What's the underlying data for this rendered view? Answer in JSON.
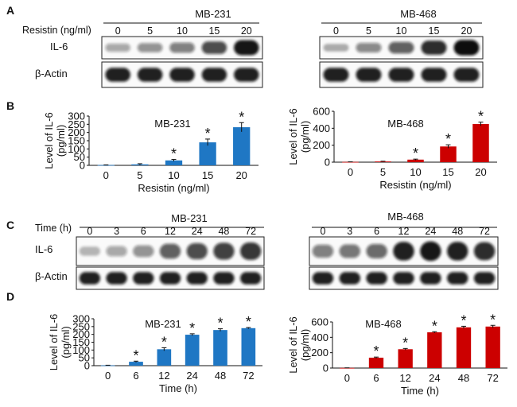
{
  "panels": {
    "A": {
      "letter": "A",
      "cell_line_left": "MB-231",
      "cell_line_right": "MB-468",
      "condition_label": "Resistin (ng/ml)",
      "lanes": [
        "0",
        "5",
        "10",
        "15",
        "20"
      ],
      "band_top": "IL-6",
      "band_bottom": "β-Actin"
    },
    "C": {
      "letter": "C",
      "cell_line_left": "MB-231",
      "cell_line_right": "MB-468",
      "condition_label": "Time  (h)",
      "lanes": [
        "0",
        "3",
        "6",
        "12",
        "24",
        "48",
        "72"
      ],
      "band_top": "IL-6",
      "band_bottom": "β-Actin"
    },
    "B": {
      "letter": "B"
    },
    "D": {
      "letter": "D"
    }
  },
  "blots": {
    "A_left_il6": [
      0.25,
      0.35,
      0.45,
      0.7,
      0.95
    ],
    "A_right_il6": [
      0.2,
      0.4,
      0.6,
      0.85,
      1.0
    ],
    "C_left_il6": [
      0.15,
      0.25,
      0.35,
      0.6,
      0.7,
      0.75,
      0.8
    ],
    "C_right_il6": [
      0.45,
      0.5,
      0.55,
      0.9,
      0.95,
      0.9,
      0.85
    ]
  },
  "colors": {
    "blue": "#1f77c4",
    "red": "#cc0000"
  },
  "chart_data": [
    {
      "type": "bar",
      "panel": "B",
      "inner_title": "MB-231",
      "categories": [
        "0",
        "5",
        "10",
        "15",
        "20"
      ],
      "values": [
        2,
        6,
        30,
        140,
        232
      ],
      "errors": [
        1,
        4,
        6,
        20,
        28
      ],
      "significant": [
        false,
        false,
        true,
        true,
        true
      ],
      "xlabel": "Resistin (ng/ml)",
      "ylabel": "Level of IL-6 (pg/ml)",
      "ylim": [
        0,
        300
      ],
      "yticks": [
        0,
        50,
        100,
        150,
        200,
        250,
        300
      ],
      "color": "#1f77c4"
    },
    {
      "type": "bar",
      "panel": "B",
      "inner_title": "MB-468",
      "categories": [
        "0",
        "5",
        "10",
        "15",
        "20"
      ],
      "values": [
        3,
        8,
        30,
        185,
        450
      ],
      "errors": [
        1,
        3,
        6,
        20,
        22
      ],
      "significant": [
        false,
        false,
        true,
        true,
        true
      ],
      "xlabel": "Resistin (ng/ml)",
      "ylabel": "Level of IL-6 (pg/ml)",
      "ylim": [
        0,
        600
      ],
      "yticks": [
        0,
        200,
        400,
        600
      ],
      "color": "#cc0000"
    },
    {
      "type": "bar",
      "panel": "D",
      "inner_title": "MB-231",
      "categories": [
        "0",
        "6",
        "12",
        "24",
        "48",
        "72"
      ],
      "values": [
        2,
        25,
        105,
        198,
        228,
        240
      ],
      "errors": [
        1,
        4,
        10,
        6,
        8,
        4
      ],
      "significant": [
        false,
        true,
        true,
        true,
        true,
        true
      ],
      "xlabel": "Time (h)",
      "ylabel": "Level of IL-6 (pg/ml)",
      "ylim": [
        0,
        300
      ],
      "yticks": [
        0,
        50,
        100,
        150,
        200,
        250,
        300
      ],
      "color": "#1f77c4"
    },
    {
      "type": "bar",
      "panel": "D",
      "inner_title": "MB-468",
      "categories": [
        "0",
        "6",
        "12",
        "24",
        "48",
        "72"
      ],
      "values": [
        2,
        135,
        245,
        465,
        530,
        540
      ],
      "errors": [
        1,
        8,
        10,
        8,
        14,
        16
      ],
      "significant": [
        false,
        true,
        true,
        true,
        true,
        true
      ],
      "xlabel": "Time (h)",
      "ylabel": "Level of IL-6 (pg/ml)",
      "ylim": [
        0,
        600
      ],
      "yticks": [
        0,
        200,
        400,
        600
      ],
      "color": "#cc0000"
    }
  ]
}
